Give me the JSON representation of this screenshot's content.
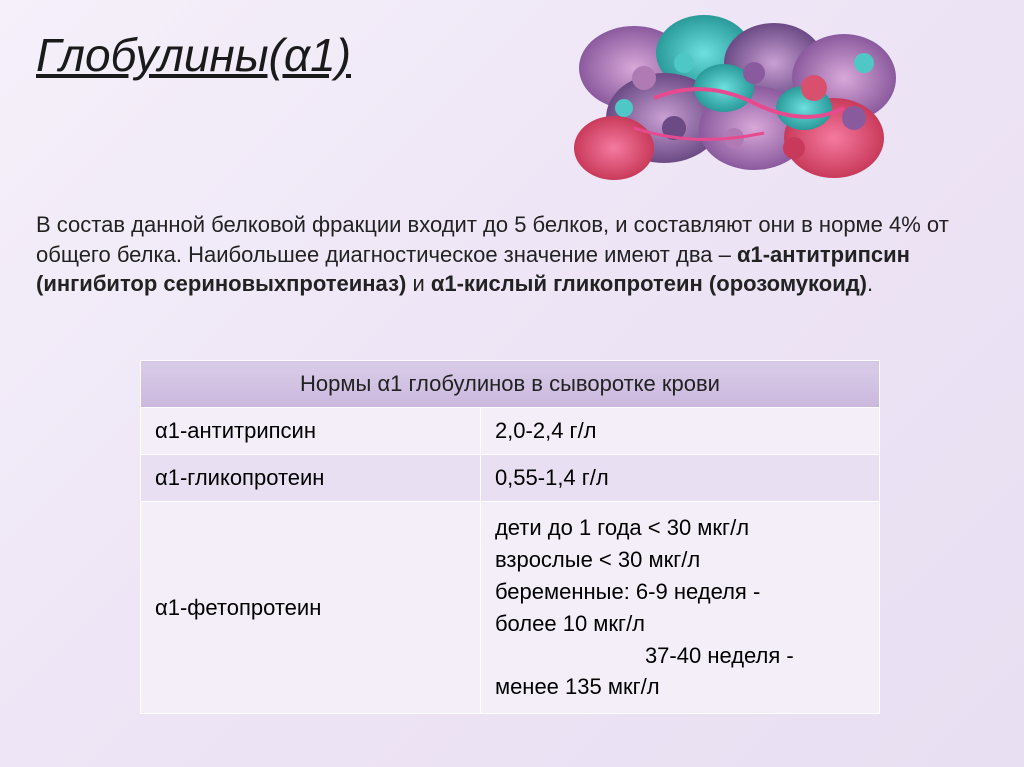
{
  "title": "Глобулины(α1)",
  "description": {
    "part1": "В состав данной белковой фракции входит до 5 белков, и составляют они в норме 4% от общего белка. Наибольшее диагностическое значение имеют два – ",
    "bold1": "α1-антитрипсин (ингибитор сериновыхпротеиназ)",
    "part2": " и ",
    "bold2": "α1-кислый гликопротеин (орозомукоид)",
    "part3": "."
  },
  "table": {
    "header": "Нормы α1 глобулинов в сыворотке крови",
    "rows": [
      {
        "label": "α1-антитрипсин",
        "value": "2,0-2,4 г/л"
      },
      {
        "label": "α1-гликопротеин",
        "value": "0,55-1,4 г/л"
      },
      {
        "label": "α1-фетопротеин",
        "value_lines": [
          "дети до 1 года < 30 мкг/л",
          "взрослые < 30 мкг/л",
          "беременные: 6-9 неделя -",
          "более 10 мкг/л",
          "37-40 неделя -",
          "менее 135 мкг/л"
        ],
        "indent_lines": [
          4
        ]
      }
    ]
  },
  "protein_colors": {
    "c1": "#b07bb5",
    "c2": "#d94f6e",
    "c3": "#4fc7c7",
    "c4": "#8a5a9e",
    "c5": "#e84a8f",
    "c6": "#6b4a85",
    "c7": "#c93a5a"
  }
}
